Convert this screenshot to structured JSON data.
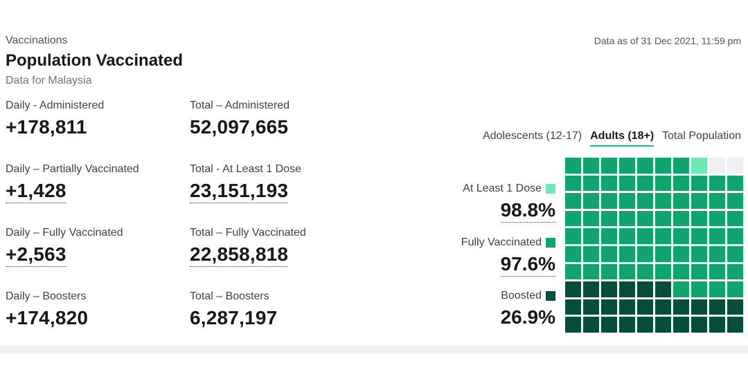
{
  "header": {
    "section": "Vaccinations",
    "title": "Population Vaccinated",
    "subtitle": "Data for Malaysia",
    "data_as_of": "Data as of 31 Dec 2021, 11:59 pm"
  },
  "stats": {
    "daily_administered": {
      "label": "Daily - Administered",
      "value": "+178,811"
    },
    "total_administered": {
      "label": "Total – Administered",
      "value": "52,097,665"
    },
    "daily_partial": {
      "label": "Daily – Partially Vaccinated",
      "value": "+1,428"
    },
    "total_at_least_1": {
      "label": "Total - At Least 1 Dose",
      "value": "23,151,193"
    },
    "daily_full": {
      "label": "Daily – Fully Vaccinated",
      "value": "+2,563"
    },
    "total_full": {
      "label": "Total – Fully Vaccinated",
      "value": "22,858,818"
    },
    "daily_boosters": {
      "label": "Daily – Boosters",
      "value": "+174,820"
    },
    "total_boosters": {
      "label": "Total – Boosters",
      "value": "6,287,197"
    }
  },
  "tabs": [
    {
      "label": "Adolescents (12-17)",
      "active": false
    },
    {
      "label": "Adults (18+)",
      "active": true
    },
    {
      "label": "Total Population",
      "active": false
    }
  ],
  "legend": {
    "at_least_1": {
      "label": "At Least 1 Dose",
      "value": "98.8%",
      "color": "#6ee7b7"
    },
    "fully": {
      "label": "Fully Vaccinated",
      "value": "97.6%",
      "color": "#10a46e"
    },
    "boosted": {
      "label": "Boosted",
      "value": "26.9%",
      "color": "#064e3b"
    }
  },
  "waffle": {
    "empty_color": "#f0f0f2",
    "cells": [
      "e",
      "e",
      "p",
      "f",
      "f",
      "f",
      "f",
      "f",
      "f",
      "f",
      "f",
      "f",
      "f",
      "f",
      "f",
      "f",
      "f",
      "f",
      "f",
      "f",
      "f",
      "f",
      "f",
      "f",
      "f",
      "f",
      "f",
      "f",
      "f",
      "f",
      "f",
      "f",
      "f",
      "f",
      "f",
      "f",
      "f",
      "f",
      "f",
      "f",
      "f",
      "f",
      "f",
      "f",
      "f",
      "f",
      "f",
      "f",
      "f",
      "f",
      "f",
      "f",
      "f",
      "f",
      "f",
      "f",
      "f",
      "f",
      "f",
      "f",
      "f",
      "f",
      "f",
      "f",
      "f",
      "f",
      "f",
      "f",
      "f",
      "f",
      "f",
      "f",
      "f",
      "f",
      "b",
      "b",
      "b",
      "b",
      "b",
      "b",
      "b",
      "b",
      "b",
      "b",
      "b",
      "b",
      "b",
      "b",
      "b",
      "b",
      "b",
      "b",
      "b",
      "b",
      "b",
      "b",
      "b",
      "b",
      "b",
      "b"
    ]
  }
}
